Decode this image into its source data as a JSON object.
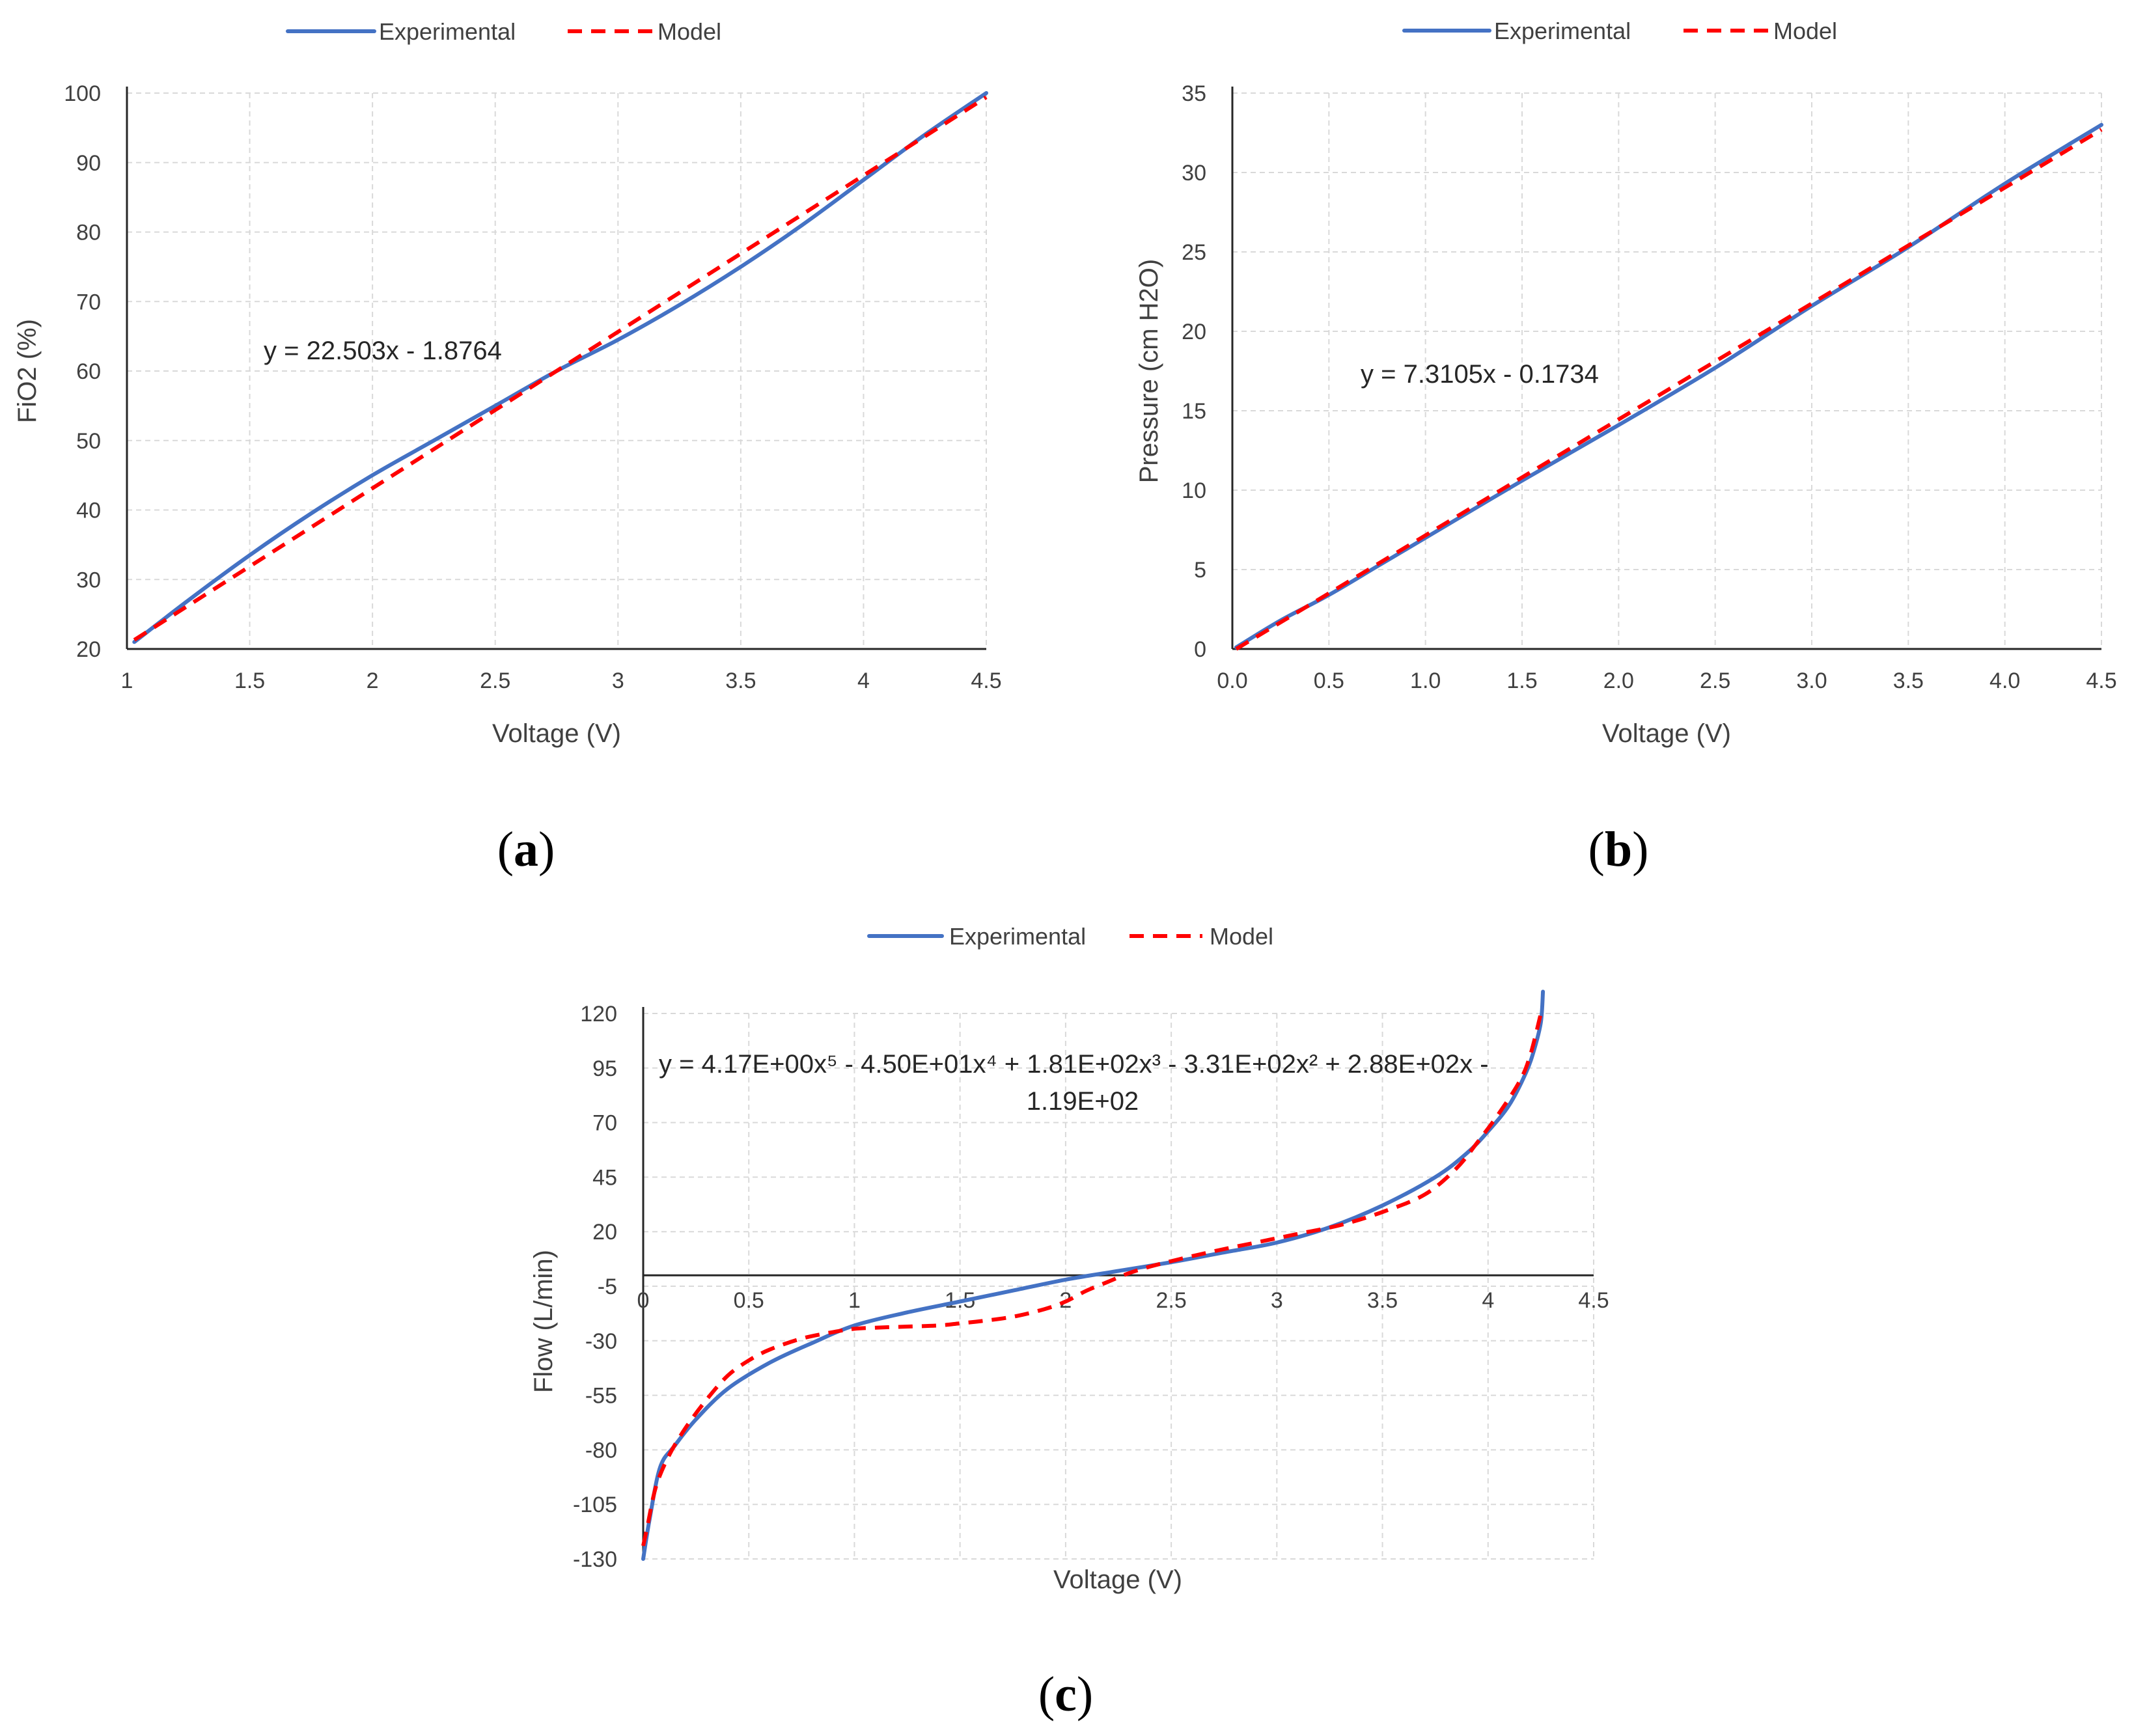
{
  "chart_data": [
    {
      "id": "a",
      "panel_label": "a",
      "type": "line",
      "title": "",
      "xlabel": "Voltage (V)",
      "ylabel": "FiO2 (%)",
      "xlim": [
        1,
        4.5
      ],
      "ylim": [
        20,
        100
      ],
      "xticks": [
        1,
        1.5,
        2,
        2.5,
        3,
        3.5,
        4,
        4.5
      ],
      "xtick_labels": [
        "1",
        "1.5",
        "2",
        "2.5",
        "3",
        "3.5",
        "4",
        "4.5"
      ],
      "yticks": [
        20,
        30,
        40,
        50,
        60,
        70,
        80,
        90,
        100
      ],
      "ytick_labels": [
        "20",
        "30",
        "40",
        "50",
        "60",
        "70",
        "80",
        "90",
        "100"
      ],
      "grid": true,
      "legend_position": "top",
      "equation": "y = 22.503x - 1.8764",
      "series": [
        {
          "name": "Experimental",
          "color": "#4472c4",
          "style": "solid",
          "x": [
            1.03,
            1.25,
            1.5,
            1.75,
            2.0,
            2.25,
            2.5,
            2.75,
            3.0,
            3.25,
            3.5,
            3.75,
            4.0,
            4.25,
            4.5
          ],
          "y": [
            21,
            27,
            33.5,
            39.5,
            45,
            50,
            55,
            60,
            64.5,
            69.5,
            75,
            81,
            87.5,
            94,
            100
          ]
        },
        {
          "name": "Model",
          "color": "#ff0000",
          "style": "dashed",
          "x": [
            1.03,
            4.5
          ],
          "y": [
            21.3,
            99.4
          ]
        }
      ]
    },
    {
      "id": "b",
      "panel_label": "b",
      "type": "line",
      "title": "",
      "xlabel": "Voltage (V)",
      "ylabel": "Pressure (cm H2O)",
      "xlim": [
        0,
        4.5
      ],
      "ylim": [
        0,
        35
      ],
      "xticks": [
        0,
        0.5,
        1,
        1.5,
        2,
        2.5,
        3,
        3.5,
        4,
        4.5
      ],
      "xtick_labels": [
        "0.0",
        "0.5",
        "1.0",
        "1.5",
        "2.0",
        "2.5",
        "3.0",
        "3.5",
        "4.0",
        "4.5"
      ],
      "yticks": [
        0,
        5,
        10,
        15,
        20,
        25,
        30,
        35
      ],
      "ytick_labels": [
        "0",
        "5",
        "10",
        "15",
        "20",
        "25",
        "30",
        "35"
      ],
      "grid": true,
      "legend_position": "top",
      "equation": "y = 7.3105x - 0.1734",
      "series": [
        {
          "name": "Experimental",
          "color": "#4472c4",
          "style": "solid",
          "x": [
            0.02,
            0.25,
            0.5,
            0.75,
            1.0,
            1.5,
            2.0,
            2.5,
            3.0,
            3.5,
            4.0,
            4.5
          ],
          "y": [
            0.1,
            1.8,
            3.4,
            5.2,
            7.0,
            10.6,
            14.1,
            17.7,
            21.6,
            25.3,
            29.3,
            33.0
          ]
        },
        {
          "name": "Model",
          "color": "#ff0000",
          "style": "dashed",
          "x": [
            0.02,
            4.5
          ],
          "y": [
            0.0,
            32.7
          ]
        }
      ]
    },
    {
      "id": "c",
      "panel_label": "c",
      "type": "line",
      "title": "",
      "xlabel": "Voltage (V)",
      "ylabel": "Flow (L/min)",
      "xlim": [
        0,
        4.5
      ],
      "ylim": [
        -130,
        120
      ],
      "xticks": [
        0,
        0.5,
        1,
        1.5,
        2,
        2.5,
        3,
        3.5,
        4,
        4.5
      ],
      "xtick_labels": [
        "0",
        "0.5",
        "1",
        "1.5",
        "2",
        "2.5",
        "3",
        "3.5",
        "4",
        "4.5"
      ],
      "yticks": [
        -130,
        -105,
        -80,
        -55,
        -30,
        -5,
        20,
        45,
        70,
        95,
        120
      ],
      "ytick_labels": [
        "-130",
        "-105",
        "-80",
        "-55",
        "-30",
        "-5",
        "20",
        "45",
        "70",
        "95",
        "120"
      ],
      "grid": true,
      "legend_position": "top",
      "equation_lines": [
        "y = 4.17E+00x⁵ - 4.50E+01x⁴ + 1.81E+02x³ - 3.31E+02x² + 2.88E+02x -",
        "1.19E+02"
      ],
      "series": [
        {
          "name": "Experimental",
          "color": "#4472c4",
          "style": "solid",
          "x": [
            0.0,
            0.03,
            0.08,
            0.15,
            0.25,
            0.4,
            0.6,
            0.8,
            1.0,
            1.25,
            1.5,
            1.75,
            2.0,
            2.25,
            2.5,
            2.75,
            3.0,
            3.25,
            3.5,
            3.75,
            3.9,
            4.0,
            4.1,
            4.18,
            4.22,
            4.25,
            4.26
          ],
          "y": [
            -130,
            -112,
            -88,
            -78,
            -66,
            -52,
            -40,
            -31,
            -23,
            -17,
            -12,
            -7,
            -2,
            2,
            6,
            10.5,
            15,
            22,
            32,
            45,
            56,
            66,
            78,
            93,
            104,
            116,
            130
          ]
        },
        {
          "name": "Model",
          "color": "#ff0000",
          "style": "dashed",
          "x": [
            0.0,
            0.02,
            0.06,
            0.12,
            0.2,
            0.3,
            0.4,
            0.5,
            0.6,
            0.75,
            0.9,
            1.0,
            1.1,
            1.25,
            1.4,
            1.5,
            1.6,
            1.75,
            1.9,
            2.0,
            2.1,
            2.2,
            2.3,
            2.4,
            2.5,
            2.7,
            2.9,
            3.1,
            3.3,
            3.5,
            3.7,
            3.85,
            3.95,
            4.05,
            4.15,
            4.2,
            4.25
          ],
          "y": [
            -124,
            -115,
            -97,
            -83,
            -70,
            -57,
            -46,
            -39,
            -34,
            -29,
            -26,
            -24.5,
            -24,
            -23.5,
            -23,
            -22,
            -21,
            -19,
            -15.5,
            -12,
            -7,
            -3,
            1,
            4,
            6.5,
            11,
            15,
            19,
            23,
            29,
            37,
            49,
            61,
            74,
            89,
            101,
            120
          ]
        }
      ]
    }
  ]
}
